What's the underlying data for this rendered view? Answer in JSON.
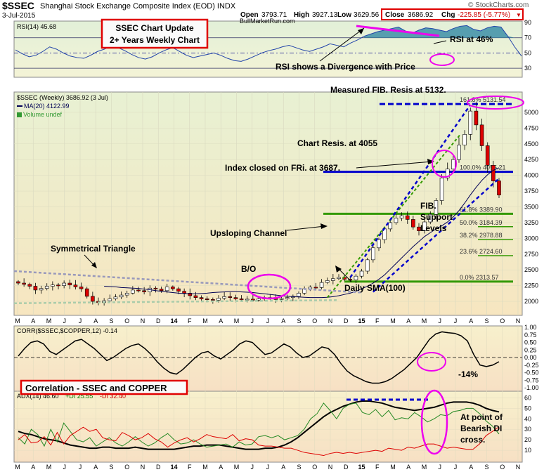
{
  "header": {
    "symbol": "$SSEC",
    "name": "Shanghai Stock Exchange Composite Index (EOD) INDX",
    "watermark": "© StockCharts.com",
    "date": "3-Jul-2015",
    "open_label": "Open",
    "open": "3793.71",
    "high_label": "High",
    "high": "3927.13",
    "low_label": "Low",
    "low": "3629.56",
    "close_label": "Close",
    "close": "3686.92",
    "chg_label": "Chg",
    "chg": "-225.85 (-5.77%)",
    "chg_arrow": "▼"
  },
  "colors": {
    "up": "#ffffff",
    "down": "#dd0000",
    "annotation_red": "#e00000",
    "magenta": "#ee00ee",
    "blue_dash": "#0000cc",
    "green_line": "#339900",
    "rsi_line": "#2244aa",
    "rsi_fill": "#3d8fa8",
    "panel_bg": "#f6efd2",
    "panel_bg_top": "#ddeecc"
  },
  "annotations": {
    "title_box": [
      "SSEC Chart Update",
      "2+ Years Weekly Chart"
    ],
    "site": "BullMarketRun.com",
    "rsi_at": "RSI at 46%",
    "rsi_div": "RSI shows a Divergence with Price",
    "measured_fib": "Measured FIB. Resis at 5132.",
    "chart_resis": "Chart Resis. at 4055",
    "index_closed": "Index closed on FRi. at 3687.",
    "fib_support": [
      "FIB.",
      "Support",
      "Levels"
    ],
    "upsloping": "Upsloping Channel",
    "sym_triangle": "Symmetrical Triangle",
    "bo": "B/O",
    "daily_sma": "Daily SMA(100)",
    "correlation_box": "Correlation - SSEC and COPPER",
    "pct14": "-14%",
    "bearish": [
      "At point of",
      "Bearish DI",
      "cross."
    ]
  },
  "chart_data": [
    {
      "type": "line",
      "panel": "RSI",
      "title": "RSI(14) 45.68",
      "ylim": [
        20,
        90
      ],
      "ticks": [
        30,
        50,
        70,
        90
      ],
      "guides": [
        30,
        50,
        70
      ],
      "series": [
        {
          "name": "RSI(14)",
          "values": [
            54,
            49,
            45,
            47,
            52,
            58,
            55,
            50,
            46,
            44,
            43,
            47,
            52,
            55,
            60,
            57,
            53,
            48,
            44,
            42,
            45,
            50,
            54,
            57,
            52,
            47,
            44,
            46,
            48,
            50,
            47,
            43,
            40,
            39,
            42,
            46,
            50,
            53,
            55,
            58,
            60,
            57,
            54,
            52,
            55,
            58,
            62,
            60,
            58,
            63,
            67,
            72,
            75,
            78,
            80,
            82,
            84,
            79,
            76,
            80,
            83,
            82,
            80,
            78,
            82,
            85,
            86,
            81,
            79,
            83,
            85,
            84,
            72,
            58,
            46
          ]
        }
      ]
    },
    {
      "type": "candlestick",
      "panel": "price",
      "title": "$SSEC (Weekly) 3686.92 (3 Jul)",
      "legend": [
        "MA(20) 4122.99",
        "Volume undef"
      ],
      "ylim": [
        1800,
        5300
      ],
      "ticks": [
        2000,
        2250,
        2500,
        2750,
        3000,
        3250,
        3500,
        3750,
        4000,
        4250,
        4500,
        4750,
        5000
      ],
      "fib_levels": [
        {
          "label": "161.8% 5131.54",
          "value": 5131.54
        },
        {
          "label": "100.0% 4055.21",
          "value": 4055.21
        },
        {
          "label": "61.8% 3389.90",
          "value": 3389.9
        },
        {
          "label": "50.0% 3184.39",
          "value": 3184.39
        },
        {
          "label": "38.2% 2978.88",
          "value": 2978.88
        },
        {
          "label": "23.6% 2724.60",
          "value": 2724.6
        },
        {
          "label": "0.0% 2313.57",
          "value": 2313.57
        }
      ],
      "closes": [
        2290,
        2270,
        2240,
        2180,
        2205,
        2240,
        2260,
        2250,
        2290,
        2260,
        2230,
        2200,
        2080,
        2000,
        1980,
        2010,
        2040,
        2070,
        2100,
        2130,
        2180,
        2170,
        2150,
        2210,
        2195,
        2170,
        2230,
        2200,
        2160,
        2130,
        2090,
        2060,
        2040,
        2030,
        2020,
        2050,
        2075,
        2060,
        2040,
        2025,
        2035,
        2020,
        2040,
        2060,
        2050,
        2030,
        2045,
        2060,
        2080,
        2130,
        2200,
        2225,
        2220,
        2300,
        2330,
        2360,
        2380,
        2350,
        2340,
        2400,
        2480,
        2660,
        2850,
        2980,
        3150,
        3250,
        3320,
        3360,
        3300,
        3180,
        3120,
        3260,
        3380,
        3600,
        3960,
        4100,
        4250,
        4480,
        4650,
        5020,
        4800,
        4470,
        4160,
        3912,
        3687
      ],
      "ma20": [
        2240,
        2235,
        2230,
        2220,
        2215,
        2210,
        2205,
        2195,
        2185,
        2170,
        2160,
        2150,
        2140,
        2130,
        2125,
        2120,
        2120,
        2125,
        2130,
        2140,
        2145,
        2150,
        2155,
        2155,
        2150,
        2145,
        2140,
        2130,
        2120,
        2110,
        2100,
        2090,
        2080,
        2075,
        2070,
        2065,
        2060,
        2060,
        2060,
        2065,
        2075,
        2090,
        2110,
        2130,
        2160,
        2200,
        2240,
        2290,
        2350,
        2420,
        2510,
        2600,
        2690,
        2780,
        2870,
        2950,
        3030,
        3090,
        3150,
        3200,
        3260,
        3340,
        3440,
        3560,
        3690,
        3810,
        3920,
        4010,
        4080,
        4120
      ],
      "ma_x_start_index": 15,
      "sma100_daily": {
        "name": "Daily SMA(100)",
        "start_index": 54
      }
    },
    {
      "type": "line",
      "panel": "correlation",
      "title": "CORR($SSEC,$COPPER,12) -0.14",
      "ylim": [
        -1.0,
        1.0
      ],
      "ticks": [
        1.0,
        0.75,
        0.5,
        0.25,
        0.0,
        -0.25,
        -0.5,
        -0.75,
        -1.0
      ],
      "series": [
        {
          "name": "CORR($SSEC,$COPPER,12)",
          "values": [
            0.05,
            0.3,
            0.5,
            0.55,
            0.45,
            0.2,
            0.1,
            0.25,
            0.4,
            0.55,
            0.6,
            0.45,
            0.3,
            0.1,
            -0.1,
            0.0,
            0.15,
            0.3,
            0.4,
            0.45,
            0.3,
            0.1,
            -0.15,
            -0.35,
            -0.5,
            -0.55,
            -0.4,
            -0.2,
            0.0,
            0.15,
            0.2,
            0.05,
            -0.05,
            0.1,
            0.25,
            0.45,
            0.55,
            0.5,
            0.3,
            0.1,
            0.15,
            0.3,
            0.45,
            0.35,
            0.15,
            0.0,
            0.05,
            0.2,
            0.35,
            0.3,
            0.1,
            -0.2,
            -0.45,
            -0.6,
            -0.7,
            -0.8,
            -0.85,
            -0.85,
            -0.8,
            -0.7,
            -0.55,
            -0.4,
            -0.2,
            0.0,
            0.3,
            0.6,
            0.78,
            0.85,
            0.82,
            0.8,
            0.72,
            0.55,
            0.1,
            -0.25,
            -0.3,
            -0.25,
            -0.14
          ]
        }
      ]
    },
    {
      "type": "line",
      "panel": "ADX",
      "title": "ADX(14) 46.60",
      "legend": [
        "+DI 25.55",
        "-DI 32.40"
      ],
      "ylim": [
        0,
        65
      ],
      "ticks": [
        60,
        50,
        40,
        30,
        20,
        10
      ],
      "series": [
        {
          "name": "ADX(14)",
          "values": [
            28,
            26,
            25,
            23,
            21,
            20,
            19,
            17,
            15,
            14,
            13,
            12,
            12,
            13,
            13,
            12,
            12,
            12,
            13,
            12,
            11,
            11,
            11,
            11,
            11,
            12,
            13,
            14,
            14,
            15,
            15,
            15,
            14,
            13,
            12,
            11,
            11,
            11,
            12,
            12,
            13,
            15,
            18,
            22,
            27,
            32,
            37,
            42,
            46,
            49,
            52,
            54,
            56,
            57,
            57,
            56,
            55,
            53,
            51,
            50,
            49,
            48,
            49,
            50,
            51,
            53,
            55,
            56,
            56,
            56,
            55,
            53,
            50,
            48,
            46.6
          ]
        },
        {
          "name": "+DI",
          "values": [
            22,
            16,
            30,
            25,
            14,
            30,
            18,
            36,
            28,
            20,
            18,
            22,
            14,
            18,
            22,
            17,
            14,
            18,
            23,
            18,
            14,
            17,
            22,
            26,
            20,
            16,
            17,
            20,
            16,
            13,
            14,
            15,
            16,
            13,
            18,
            15,
            16,
            23,
            24,
            22,
            24,
            20,
            22,
            24,
            30,
            40,
            45,
            55,
            48,
            40,
            50,
            54,
            55,
            46,
            44,
            49,
            42,
            48,
            39,
            41,
            40,
            46,
            42,
            37,
            40,
            44,
            43,
            47,
            48,
            50,
            50,
            45,
            38,
            33,
            25.55
          ]
        },
        {
          "name": "-DI",
          "values": [
            20,
            25,
            17,
            18,
            23,
            15,
            27,
            16,
            24,
            28,
            32,
            28,
            30,
            22,
            20,
            19,
            27,
            24,
            20,
            22,
            26,
            21,
            18,
            13,
            17,
            20,
            22,
            18,
            21,
            25,
            23,
            22,
            21,
            25,
            19,
            21,
            20,
            15,
            14,
            14,
            13,
            12,
            12,
            10,
            8,
            7,
            6,
            5,
            7,
            8,
            7,
            8,
            7,
            8,
            9,
            10,
            9,
            12,
            11,
            10,
            13,
            12,
            14,
            16,
            16,
            14,
            12,
            13,
            12,
            11,
            11,
            16,
            24,
            28,
            32.4
          ]
        }
      ]
    }
  ],
  "x_axis": {
    "top_labels": [
      "M",
      "A",
      "M",
      "J",
      "J",
      "A",
      "S",
      "O",
      "N",
      "D",
      "14",
      "F",
      "M",
      "A",
      "M",
      "J",
      "J",
      "A",
      "S",
      "O",
      "N",
      "D",
      "15",
      "F",
      "M",
      "A",
      "M",
      "J",
      "J",
      "A",
      "S",
      "O",
      "N"
    ],
    "bottom_labels": [
      "M",
      "A",
      "M",
      "J",
      "J",
      "A",
      "S",
      "O",
      "N",
      "D",
      "14",
      "F",
      "M",
      "A",
      "M",
      "J",
      "J",
      "A",
      "S",
      "O",
      "N",
      "D",
      "15",
      "F",
      "M",
      "A",
      "M",
      "J",
      "J",
      "A",
      "S",
      "O",
      "N"
    ]
  }
}
